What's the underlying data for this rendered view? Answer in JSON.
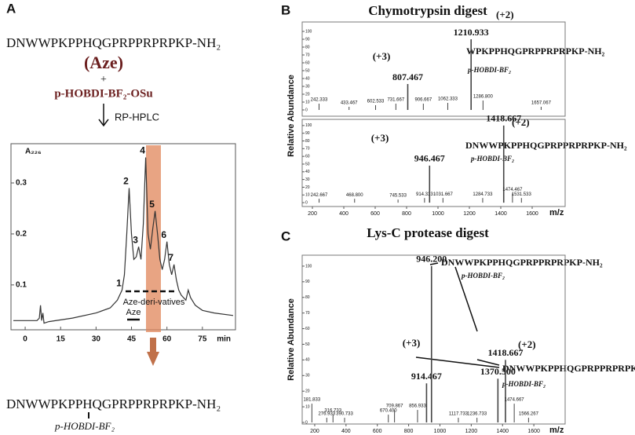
{
  "figure": {
    "panel_a": {
      "label": "A",
      "sequence": "DNWWPKPPHQGPRPPRPRPKP-NH₂",
      "reagent_1": "(Aze)",
      "plus": "+",
      "reagent_2": "p-HOBDI-BF₂-OSu",
      "method": "RP-HPLC",
      "derivatives": "Aze-deri-vatives",
      "aze": "Aze",
      "product": "DNWWPKPPHQGPRPPRPRPKP-NH₂",
      "product_mod": "p-HOBDI-BF₂"
    },
    "panel_b": {
      "label": "B",
      "title": "Chymotrypsin digest",
      "top_charge_1": "(+3)",
      "top_charge_2": "(+2)",
      "top_peptide": "WPKPPHQGPRPPRPRPKP-NH₂",
      "top_mod": "p-HOBDI-BF₂",
      "bottom_charge_1": "(+3)",
      "bottom_charge_2": "(+2)",
      "bottom_peptide": "DNWWPKPPHQGPRPPRPRPKP-NH₂",
      "bottom_mod": "p-HOBDI-BF₂"
    },
    "panel_c": {
      "label": "C",
      "title": "Lys-C protease digest",
      "charge_1": "(+3)",
      "charge_2": "(+2)",
      "peptide_1": "DNWWPKPPHQGPRPPRPRPKP-NH₂",
      "mod_1": "p-HOBDI-BF₂",
      "peptide_2": "DNWWPKPPHQGPRPPRPRPK",
      "mod_2": "p-HOBDI-BF₂"
    }
  },
  "chart_data": [
    {
      "type": "line",
      "y_label": "A₂₂₆",
      "x_label": "min",
      "color": "#333333",
      "x": [
        -5,
        0,
        5,
        6,
        6.5,
        7,
        7.5,
        8,
        10,
        20,
        30,
        36,
        39,
        41,
        42,
        43,
        44,
        45,
        46,
        47,
        48,
        49,
        50,
        51,
        52,
        53,
        54,
        55,
        56,
        57,
        58,
        59,
        60,
        61,
        62,
        63,
        64,
        65,
        66,
        68,
        69,
        70,
        72,
        75,
        80,
        88
      ],
      "values": [
        0.03,
        0.03,
        0.03,
        0.035,
        0.06,
        0.03,
        0.045,
        0.025,
        0.028,
        0.035,
        0.045,
        0.055,
        0.07,
        0.09,
        0.12,
        0.2,
        0.29,
        0.2,
        0.15,
        0.155,
        0.175,
        0.15,
        0.22,
        0.35,
        0.2,
        0.17,
        0.21,
        0.245,
        0.2,
        0.15,
        0.13,
        0.15,
        0.185,
        0.14,
        0.12,
        0.14,
        0.11,
        0.09,
        0.08,
        0.07,
        0.09,
        0.075,
        0.06,
        0.05,
        0.045,
        0.04
      ],
      "peaks": {
        "labels": [
          "1",
          "2",
          "3",
          "4",
          "5",
          "6",
          "7"
        ],
        "x": [
          41,
          44,
          48,
          51,
          55,
          60,
          63
        ],
        "values": [
          0.09,
          0.29,
          0.175,
          0.35,
          0.245,
          0.185,
          0.14
        ]
      },
      "xlim": [
        -6,
        89
      ],
      "ylim": [
        0.012,
        0.377
      ],
      "xticks": [
        0,
        15,
        30,
        45,
        60,
        75
      ],
      "yticks": [
        0.1,
        0.2,
        0.3
      ]
    },
    {
      "type": "spectrum",
      "x_label": "m/z",
      "color": "#444444",
      "x": [
        242.333,
        433.467,
        602.533,
        731.667,
        807.467,
        906.667,
        1062.333,
        1210.933,
        1286.8,
        1657.067
      ],
      "x_labels": [
        "242.333",
        "433.467",
        "602.533",
        "731.667",
        "807.467",
        "906.667",
        "1062.333",
        "1210.933",
        "1286.800",
        "1657.067"
      ],
      "values": [
        8,
        4,
        6,
        8,
        33,
        8,
        9,
        90,
        12,
        4
      ],
      "xlim": [
        135,
        1810
      ],
      "ylim": [
        -8,
        112
      ],
      "yticks": [
        0,
        10,
        20,
        30,
        40,
        50,
        60,
        70,
        80,
        90,
        100
      ]
    },
    {
      "type": "spectrum",
      "y_label": "Relative Abundance",
      "x_label": "m/z",
      "color": "#444444",
      "x": [
        242.667,
        468.8,
        745.533,
        914.333,
        946.467,
        1031.667,
        1284.733,
        1418.667,
        1474.467,
        1531.533
      ],
      "x_labels": [
        "242.667",
        "468.800",
        "745.533",
        "914.333",
        "946.467",
        "1031.667",
        "1284.733",
        "1418.667",
        "1474.467",
        "1531.533"
      ],
      "values": [
        5,
        5,
        4,
        6,
        48,
        6,
        6,
        100,
        12,
        6
      ],
      "xlim": [
        135,
        1810
      ],
      "ylim": [
        -5,
        108
      ],
      "xticks": [
        200,
        400,
        600,
        800,
        1000,
        1200,
        1400,
        1600
      ],
      "yticks": [
        0,
        10,
        20,
        30,
        40,
        50,
        60,
        70,
        80,
        90,
        100
      ]
    },
    {
      "type": "spectrum",
      "y_label": "Relative Abundance",
      "x_label": "m/z",
      "color": "#444444",
      "x": [
        181.833,
        276.933,
        316.733,
        390.733,
        670.4,
        709.867,
        856.933,
        914.467,
        946.2,
        1117.733,
        1236.733,
        1370.5,
        1418.667,
        1474.667,
        1566.267
      ],
      "x_labels": [
        "181.833",
        "276.933",
        "316.733",
        "390.733",
        "670.400",
        "709.867",
        "856.933",
        "914.467",
        "946.200",
        "1117.733",
        "1236.733",
        "1370.500",
        "1418.667",
        "1474.667",
        "1566.267"
      ],
      "values": [
        12,
        3,
        5,
        3,
        5,
        8,
        8,
        25,
        100,
        3,
        3,
        28,
        40,
        12,
        3
      ],
      "xlim": [
        120,
        1800
      ],
      "ylim": [
        -1,
        107
      ],
      "xticks": [
        200,
        400,
        600,
        800,
        1000,
        1200,
        1400,
        1600
      ],
      "yticks": [
        0,
        10,
        20,
        30,
        40,
        50,
        60,
        70,
        80,
        90,
        100
      ]
    }
  ]
}
